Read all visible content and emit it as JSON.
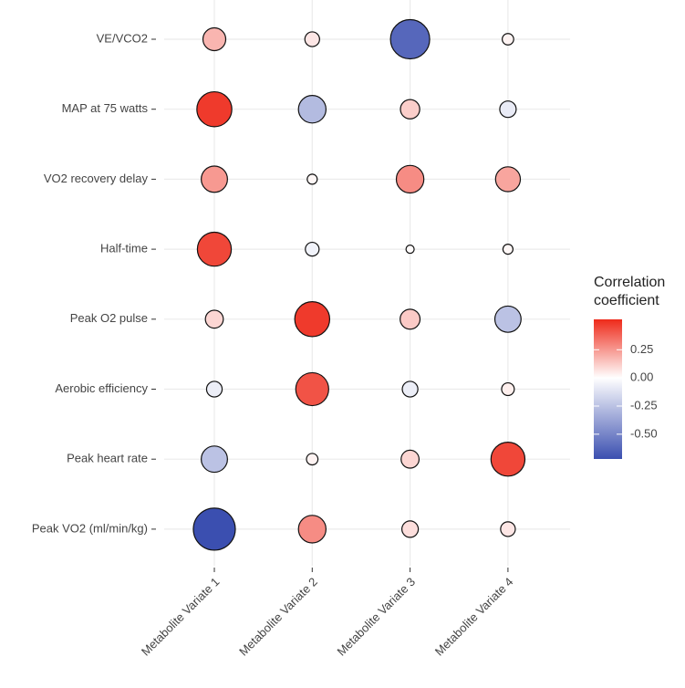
{
  "chart_data": {
    "type": "bubble-matrix",
    "x_categories": [
      "Metabolite Variate 1",
      "Metabolite Variate 2",
      "Metabolite Variate 3",
      "Metabolite Variate 4"
    ],
    "y_categories": [
      "VE/VCO2",
      "MAP at 75 watts",
      "VO2 recovery delay",
      "Half-time",
      "Peak O2 pulse",
      "Aerobic efficiency",
      "Peak heart rate",
      "Peak VO2 (ml/min/kg)"
    ],
    "values": [
      [
        0.18,
        0.06,
        -0.62,
        0.03
      ],
      [
        0.48,
        -0.28,
        0.12,
        -0.08
      ],
      [
        0.25,
        0.02,
        0.28,
        0.22
      ],
      [
        0.45,
        -0.05,
        0.01,
        0.02
      ],
      [
        0.1,
        0.48,
        0.13,
        -0.25
      ],
      [
        -0.07,
        0.42,
        -0.07,
        0.04
      ],
      [
        -0.25,
        0.03,
        0.1,
        0.45
      ],
      [
        -0.72,
        0.28,
        0.08,
        0.06
      ]
    ],
    "legend_title": "Correlation coefficient",
    "clim": [
      -0.72,
      0.52
    ],
    "cticks": [
      0.25,
      {
        "value": 0,
        "label": "0.00"
      },
      -0.25,
      {
        "value": -0.5,
        "label": "-0.50"
      }
    ],
    "palette": [
      "#3b4fb0",
      "#ffffff",
      "#ee2a1a"
    ],
    "grid": true
  }
}
